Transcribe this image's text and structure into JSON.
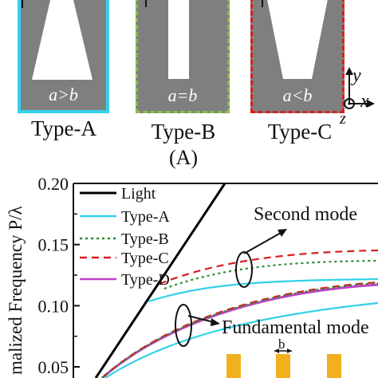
{
  "panel_a": {
    "cells": [
      {
        "id": "A",
        "ratio": "a>b",
        "name": "Type-A",
        "border_color": "#33d1e8"
      },
      {
        "id": "B",
        "ratio": "a=b",
        "name": "Type-B",
        "border_color": "#8bbd4a"
      },
      {
        "id": "C",
        "ratio": "a<b",
        "name": "Type-C",
        "border_color": "#d51f1f"
      }
    ],
    "label": "(A)",
    "axes": {
      "y": "y",
      "x": "x",
      "z": "z"
    }
  },
  "chart_data": {
    "type": "line",
    "ylabel": "Normalized Frequency P/λ",
    "ylabel_visible": "malized Frequency P/λ",
    "ylim": [
      0.05,
      0.2
    ],
    "yticks": [
      "0.20",
      "0.15",
      "0.10",
      "0.05"
    ],
    "legend_placement": "top-left",
    "series": [
      {
        "name": "Light",
        "color": "#000000",
        "style": "solid"
      },
      {
        "name": "Type-A",
        "color": "#33d1e8",
        "style": "solid"
      },
      {
        "name": "Type-B",
        "color": "#2e8b2e",
        "style": "dotted"
      },
      {
        "name": "Type-C",
        "color": "#d51f1f",
        "style": "dashed"
      },
      {
        "name": "Type-D",
        "color": "#c040c8",
        "style": "solid"
      }
    ],
    "annotations": {
      "second_mode": "Second mode",
      "fundamental_mode": "Fundamental mode",
      "b_label": "b"
    },
    "colors": {
      "bars": "#f2b01e"
    }
  }
}
